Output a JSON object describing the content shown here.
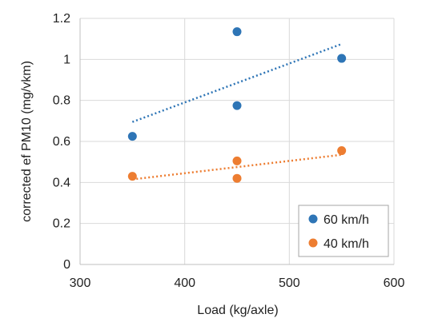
{
  "chart_data": {
    "type": "scatter",
    "title": "",
    "xlabel": "Load (kg/axle)",
    "ylabel": "corrected ef PM10 (mg/vkm)",
    "xlim": [
      300,
      600
    ],
    "ylim": [
      0,
      1.2
    ],
    "x_ticks": [
      "300",
      "400",
      "500",
      "600"
    ],
    "y_ticks": [
      "0",
      "0.2",
      "0.4",
      "0.6",
      "0.8",
      "1",
      "1.2"
    ],
    "grid": true,
    "legend_position": "bottom-right",
    "series": [
      {
        "name": "60 km/h",
        "color": "#2E75B6",
        "points": [
          {
            "x": 350,
            "y": 0.625
          },
          {
            "x": 450,
            "y": 1.135
          },
          {
            "x": 450,
            "y": 0.775
          },
          {
            "x": 550,
            "y": 1.005
          }
        ],
        "trendline": {
          "style": "dotted",
          "from": {
            "x": 350,
            "y": 0.695
          },
          "to": {
            "x": 550,
            "y": 1.075
          }
        }
      },
      {
        "name": "40 km/h",
        "color": "#ED7D31",
        "points": [
          {
            "x": 350,
            "y": 0.43
          },
          {
            "x": 450,
            "y": 0.505
          },
          {
            "x": 450,
            "y": 0.42
          },
          {
            "x": 550,
            "y": 0.555
          }
        ],
        "trendline": {
          "style": "dotted",
          "from": {
            "x": 350,
            "y": 0.415
          },
          "to": {
            "x": 550,
            "y": 0.535
          }
        }
      }
    ]
  }
}
